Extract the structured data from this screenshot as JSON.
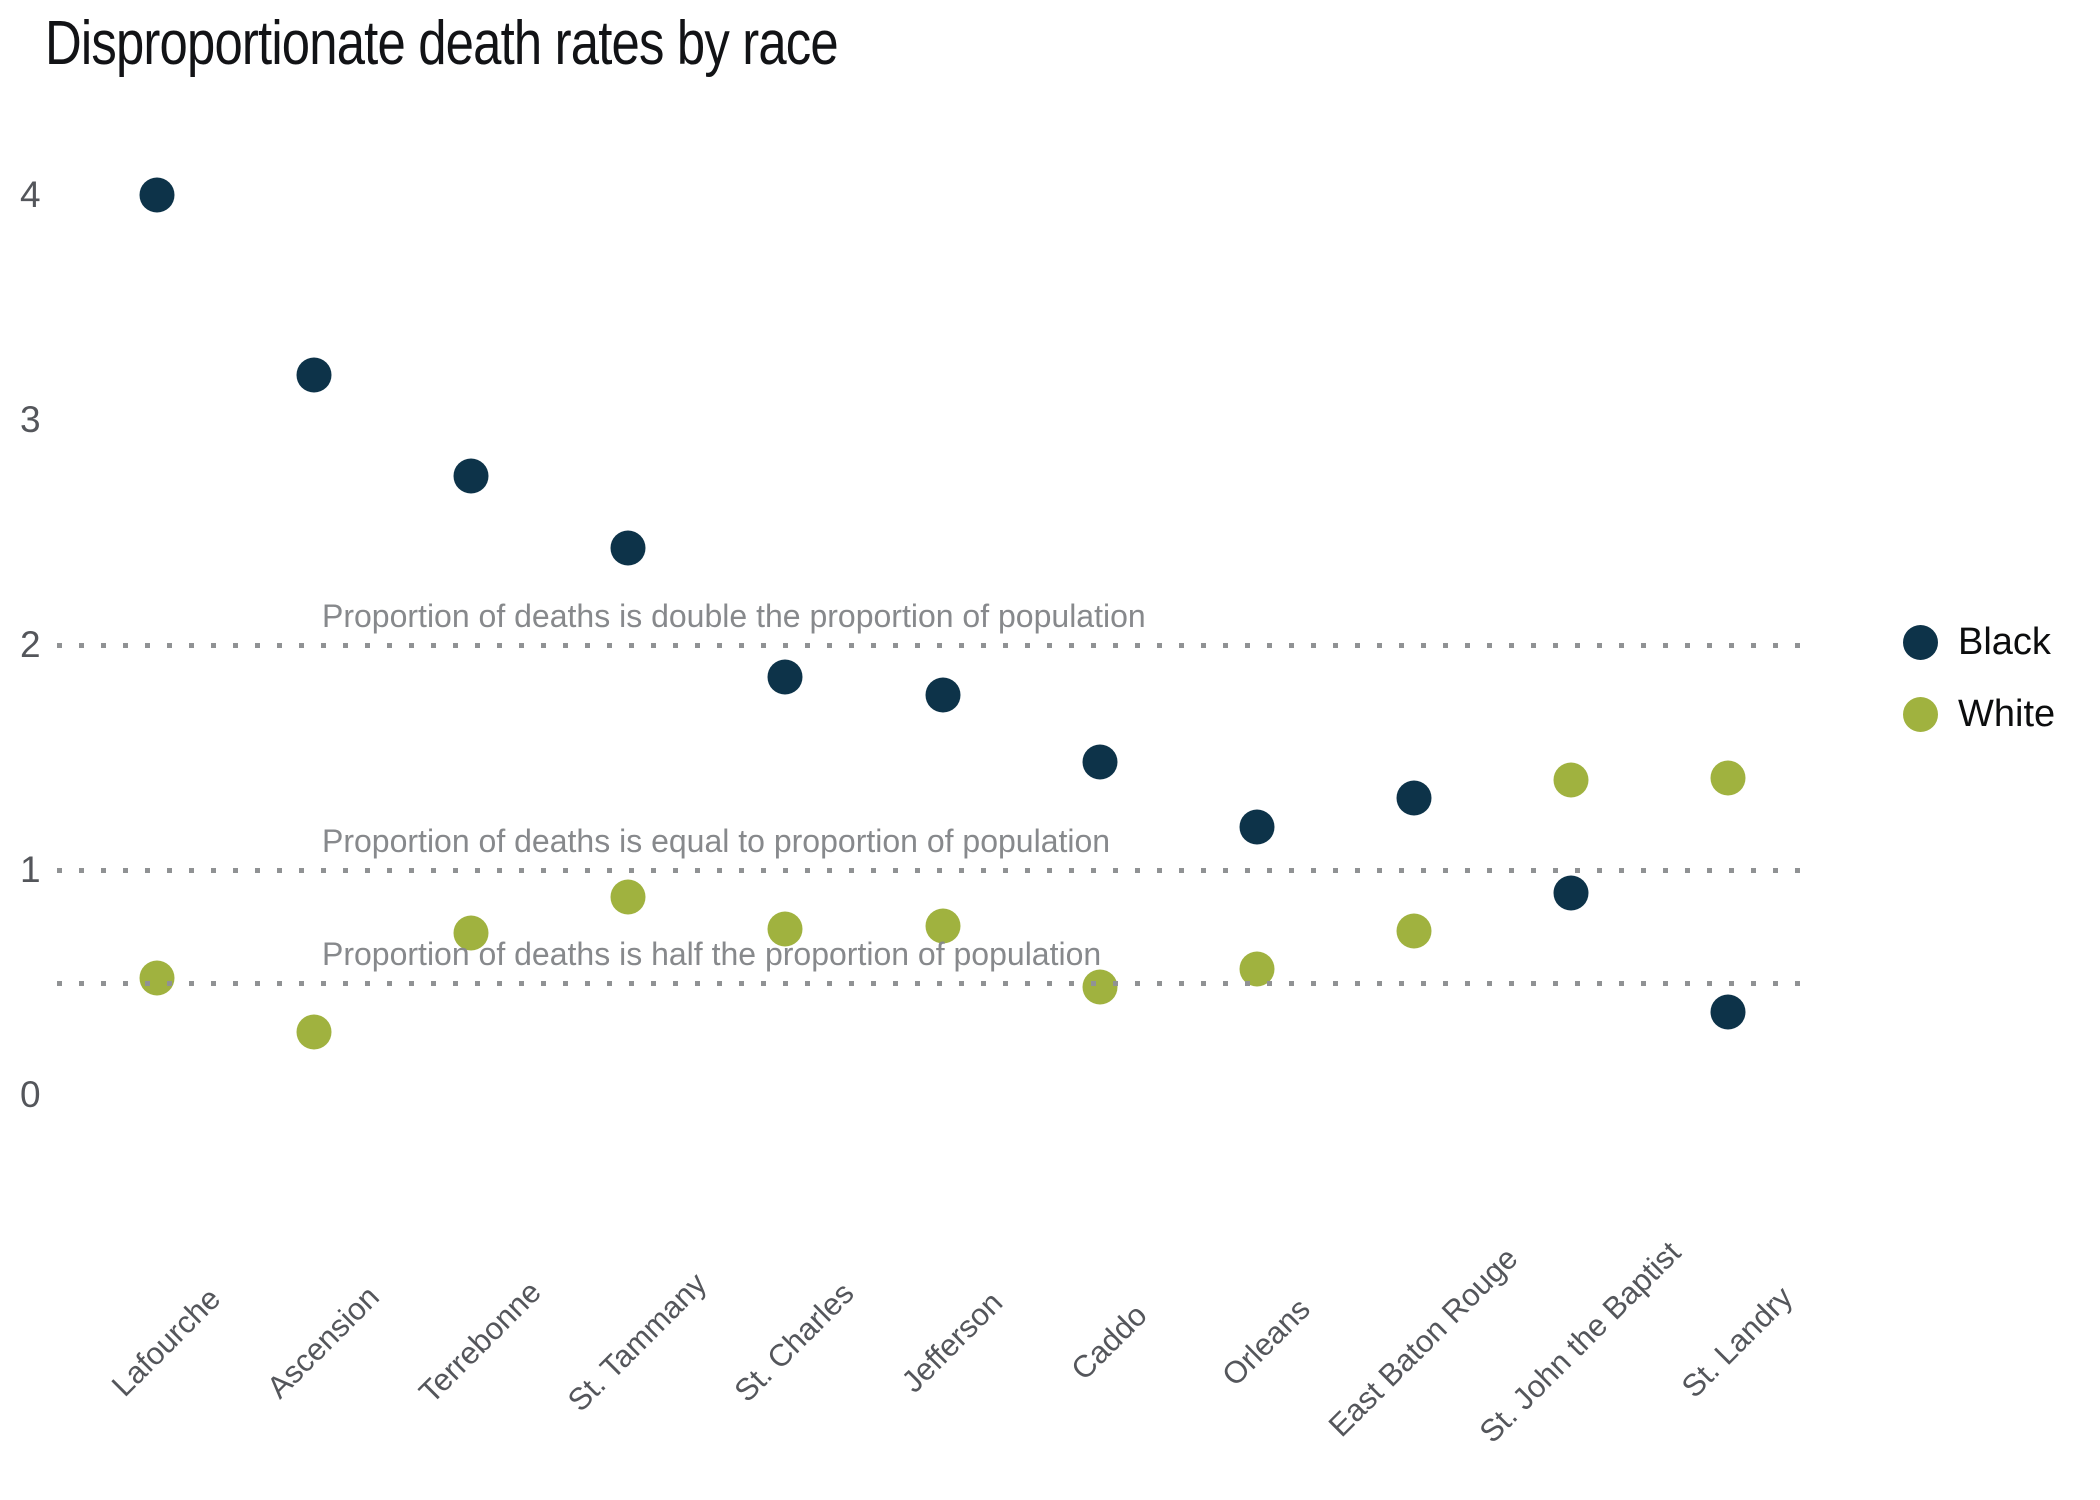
{
  "title": "Disproportionate death rates by race",
  "colors": {
    "black_series": "#0d3349",
    "white_series": "#a0b23f",
    "axis_text": "#54565b",
    "annotation_text": "#87898c",
    "dotted_line": "#909294",
    "title_text": "#121316"
  },
  "legend": {
    "items": [
      {
        "label": "Black",
        "color": "#0d3349"
      },
      {
        "label": "White",
        "color": "#a0b23f"
      }
    ]
  },
  "chart_data": {
    "type": "scatter",
    "title": "Disproportionate death rates by race",
    "categories": [
      "Lafourche",
      "Ascension",
      "Terrebonne",
      "St. Tammany",
      "St. Charles",
      "Jefferson",
      "Caddo",
      "Orleans",
      "East Baton Rouge",
      "St. John the Baptist",
      "St. Landry"
    ],
    "series": [
      {
        "name": "Black",
        "color": "#0d3349",
        "values": [
          4.0,
          3.2,
          2.75,
          2.43,
          1.86,
          1.78,
          1.48,
          1.19,
          1.32,
          0.9,
          0.37
        ]
      },
      {
        "name": "White",
        "color": "#a0b23f",
        "values": [
          0.52,
          0.28,
          0.72,
          0.88,
          0.74,
          0.75,
          0.48,
          0.56,
          0.73,
          1.4,
          1.41
        ]
      }
    ],
    "xlabel": "",
    "ylabel": "",
    "y_ticks": [
      0,
      1,
      2,
      3,
      4
    ],
    "ylim": [
      0,
      4.35
    ],
    "grid": false,
    "legend_position": "right",
    "reference_lines": [
      {
        "value": 2,
        "label": "Proportion of deaths is double the proportion of population"
      },
      {
        "value": 1,
        "label": "Proportion of deaths is equal to proportion of population"
      },
      {
        "value": 0.5,
        "label": "Proportion of deaths is half the proportion of population"
      }
    ]
  }
}
